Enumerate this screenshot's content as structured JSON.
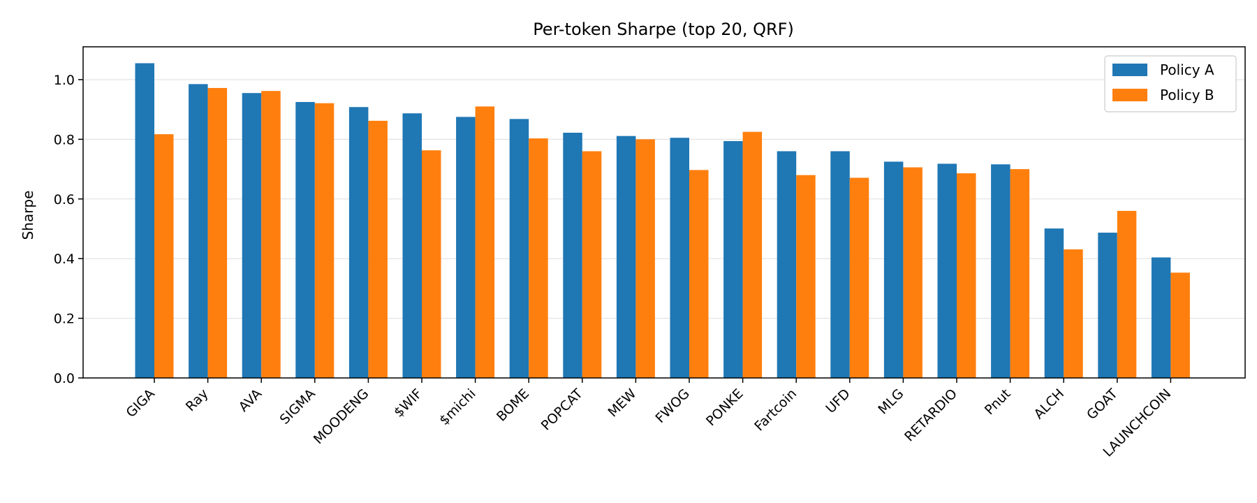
{
  "chart_data": {
    "type": "bar",
    "title": "Per-token Sharpe (top 20, QRF)",
    "xlabel": "",
    "ylabel": "Sharpe",
    "ylim": [
      0,
      1.11
    ],
    "yticks": [
      "0.0",
      "0.2",
      "0.4",
      "0.6",
      "0.8",
      "1.0"
    ],
    "grid": "horizontal",
    "legend_position": "top-right",
    "categories": [
      "GIGA",
      "Ray",
      "AVA",
      "SIGMA",
      "MOODENG",
      "$WIF",
      "$michi",
      "BOME",
      "POPCAT",
      "MEW",
      "FWOG",
      "PONKE",
      "Fartcoin",
      "UFD",
      "MLG",
      "RETARDIO",
      "Pnut",
      "ALCH",
      "GOAT",
      "LAUNCHCOIN"
    ],
    "series": [
      {
        "name": "Policy A",
        "color": "#1f77b4",
        "values": [
          1.055,
          0.985,
          0.955,
          0.925,
          0.908,
          0.887,
          0.875,
          0.868,
          0.822,
          0.811,
          0.805,
          0.794,
          0.76,
          0.76,
          0.725,
          0.718,
          0.716,
          0.501,
          0.487,
          0.404
        ]
      },
      {
        "name": "Policy B",
        "color": "#ff7f0e",
        "values": [
          0.817,
          0.972,
          0.962,
          0.921,
          0.862,
          0.763,
          0.91,
          0.803,
          0.76,
          0.8,
          0.697,
          0.825,
          0.68,
          0.671,
          0.706,
          0.686,
          0.7,
          0.431,
          0.56,
          0.353
        ]
      }
    ]
  }
}
